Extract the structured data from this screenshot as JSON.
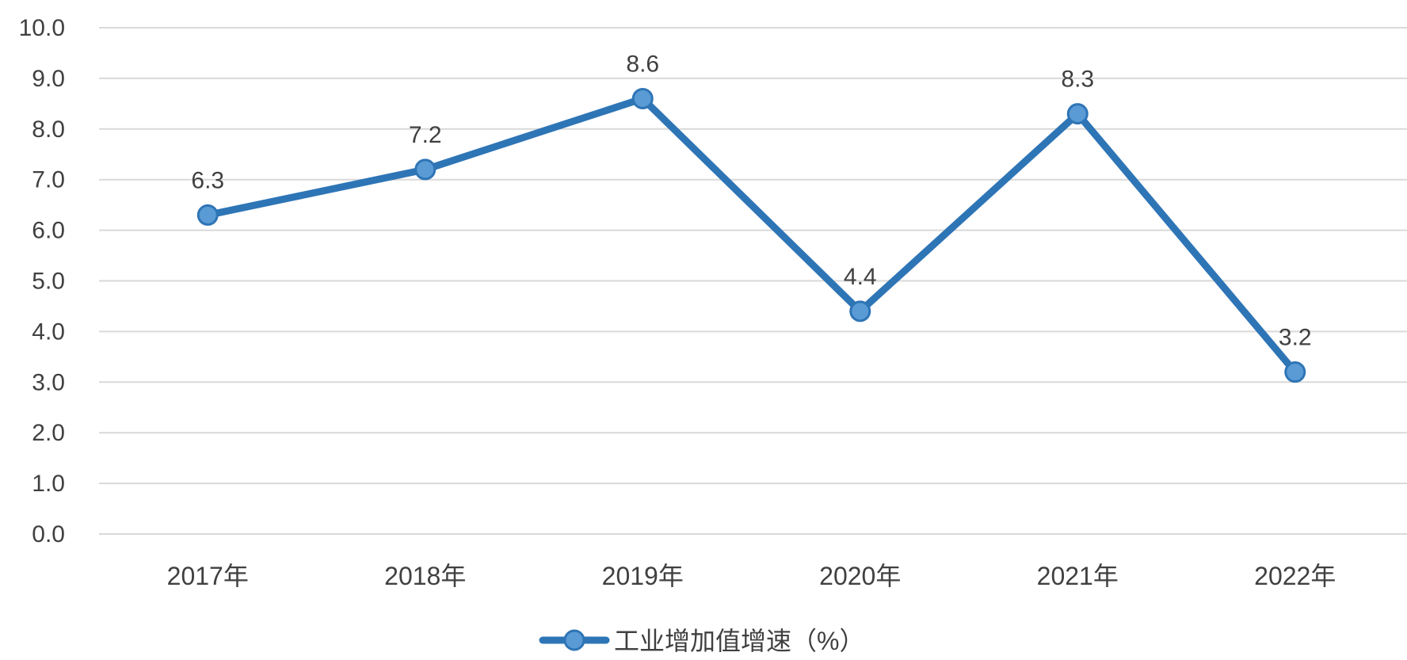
{
  "chart_data": {
    "type": "line",
    "categories": [
      "2017年",
      "2018年",
      "2019年",
      "2020年",
      "2021年",
      "2022年"
    ],
    "series": [
      {
        "name": "工业增加值增速（%）",
        "values": [
          6.3,
          7.2,
          8.6,
          4.4,
          8.3,
          3.2
        ],
        "color": "#2e75b6",
        "marker_color": "#5b9bd5"
      }
    ],
    "title": "",
    "xlabel": "",
    "ylabel": "",
    "ylim": [
      0,
      10
    ],
    "y_ticks": [
      "0.0",
      "1.0",
      "2.0",
      "3.0",
      "4.0",
      "5.0",
      "6.0",
      "7.0",
      "8.0",
      "9.0",
      "10.0"
    ],
    "data_labels": [
      "6.3",
      "7.2",
      "8.6",
      "4.4",
      "8.3",
      "3.2"
    ],
    "grid": true,
    "legend_position": "bottom"
  }
}
